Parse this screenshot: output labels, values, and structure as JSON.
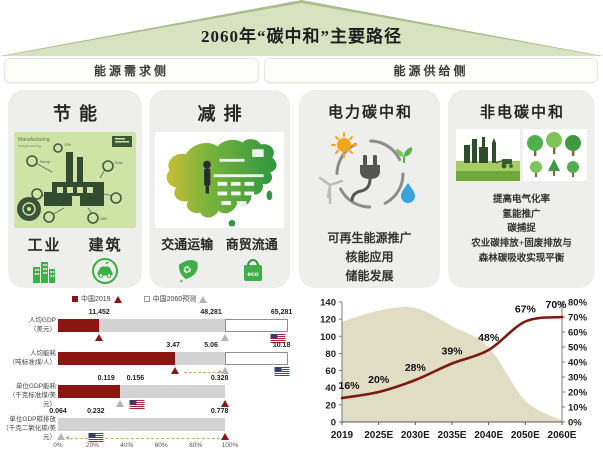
{
  "header": {
    "title": "2060年“碳中和”主要路径"
  },
  "sections": {
    "demand": "能源需求侧",
    "supply": "能源供给侧"
  },
  "cards": [
    {
      "title": "节能",
      "labels": [
        "工业",
        "建筑"
      ],
      "icons": [
        "buildings-icon",
        "ev-car-icon"
      ],
      "image": "factory-infographic"
    },
    {
      "title": "减排",
      "labels": [
        "交通运输",
        "商贸流通"
      ],
      "icons": [
        "recycle-leaf-icon",
        "eco-bag-icon"
      ],
      "image": "china-map"
    },
    {
      "title": "电力碳中和",
      "lines": [
        "可再生能源推广",
        "核能应用",
        "储能发展"
      ],
      "image": "clean-energy-circle"
    },
    {
      "title": "非电碳中和",
      "lines": [
        "提高电气化率",
        "氢能推广",
        "碳捕捉",
        "农业碳排放+固废排放与",
        "森林碳吸收实现平衡"
      ],
      "images": [
        "green-industry",
        "forest-trees"
      ]
    }
  ],
  "colors": {
    "roof_green": "#d9e2c0",
    "bar_red": "#8b1511",
    "bar_gray": "#d2d2d2",
    "area_beige": "#e1ddc5",
    "line_maroon": "#7a1a10",
    "accent_green": "#3fae49"
  },
  "chart_data": [
    {
      "type": "bar",
      "name": "china-vs-us-indicators",
      "legend": [
        {
          "label": "中国2019",
          "swatch": "#8b1511",
          "marker": "red"
        },
        {
          "label": "中国2060预测",
          "swatch": "#ffffff",
          "marker": "gray"
        }
      ],
      "x_ticks": [
        [
          "0%",
          0
        ],
        [
          "20%",
          20
        ],
        [
          "40%",
          40
        ],
        [
          "60%",
          60
        ],
        [
          "80%",
          80
        ],
        [
          "100%",
          100
        ]
      ],
      "rows": [
        {
          "label": "人均GDP",
          "unit": "（美元）",
          "values": {
            "china_2019": 11452,
            "china_2060": 48281,
            "us": 65281
          },
          "segments": [
            [
              "red",
              0,
              24
            ],
            [
              "gray",
              24,
              97
            ],
            [
              "white",
              97,
              134
            ]
          ],
          "value_labels": [
            [
              "11,452",
              24
            ],
            [
              "48,281",
              89
            ],
            [
              "65,281",
              130
            ]
          ],
          "markers": [
            [
              "red",
              24
            ],
            [
              "gray",
              97
            ],
            [
              "flag",
              128
            ]
          ]
        },
        {
          "label": "人均能耗",
          "unit": "（吨标准煤/人）",
          "values": {
            "china_2019": 3.47,
            "china_2060": 5.06,
            "us": 10.18
          },
          "segments": [
            [
              "red",
              0,
              68
            ],
            [
              "gray",
              68,
              97
            ],
            [
              "white",
              97,
              134
            ]
          ],
          "value_labels": [
            [
              "3.47",
              67
            ],
            [
              "5.06",
              89
            ],
            [
              "10.18",
              130
            ]
          ],
          "markers": [
            [
              "red",
              68
            ],
            [
              "gray",
              97
            ],
            [
              "flag",
              130
            ]
          ],
          "arrow": {
            "from": 73,
            "to": 94,
            "dir": "right"
          }
        },
        {
          "label": "单位GDP能耗",
          "unit": "（千克标准煤/美元）",
          "values": {
            "china_2019": 0.328,
            "china_2060": 0.119,
            "us": 0.156
          },
          "segments": [
            [
              "red",
              0,
              36
            ],
            [
              "gray",
              36,
              97
            ]
          ],
          "value_labels": [
            [
              "0.119",
              28
            ],
            [
              "0.156",
              45
            ],
            [
              "0.328",
              94
            ]
          ],
          "markers": [
            [
              "gray",
              36
            ],
            [
              "flag",
              46
            ],
            [
              "red",
              97
            ]
          ]
        },
        {
          "label": "单位GDP碳排放",
          "unit": "（千克二氧化碳/美元）",
          "values": {
            "china_2019": 0.778,
            "china_2060": 0.064,
            "us": 0.232
          },
          "segments": [
            [
              "gray",
              0,
              97
            ]
          ],
          "value_labels": [
            [
              "0.064",
              0
            ],
            [
              "0.232",
              22
            ],
            [
              "0.778",
              94
            ]
          ],
          "markers": [
            [
              "gray",
              2
            ],
            [
              "flag",
              22
            ],
            [
              "red",
              97
            ]
          ],
          "arrow": {
            "from": 94,
            "to": 7,
            "dir": "left"
          }
        }
      ]
    },
    {
      "type": "area-line",
      "name": "emissions-and-share-forecast",
      "x": [
        "2019",
        "2025E",
        "2030E",
        "2035E",
        "2040E",
        "2050E",
        "2060E"
      ],
      "series": [
        {
          "name": "emissions-area",
          "type": "area",
          "axis": "left",
          "color": "#e1ddc5",
          "values": [
            117,
            130,
            133,
            112,
            87,
            25,
            2
          ]
        },
        {
          "name": "share-line",
          "type": "line",
          "axis": "right",
          "color": "#7a1a10",
          "values": [
            16,
            20,
            28,
            39,
            48,
            67,
            70
          ],
          "labels": [
            "16%",
            "20%",
            "28%",
            "39%",
            "48%",
            "67%",
            "70%"
          ]
        }
      ],
      "left_axis": {
        "min": 0,
        "max": 140,
        "step": 20,
        "ticks": [
          "0",
          "20",
          "40",
          "60",
          "80",
          "100",
          "120",
          "140"
        ]
      },
      "right_axis": {
        "min": 0,
        "max": 80,
        "step": 10,
        "suffix": "%",
        "ticks": [
          "0%",
          "10%",
          "20%",
          "30%",
          "40%",
          "50%",
          "60%",
          "70%",
          "80%"
        ]
      }
    }
  ]
}
